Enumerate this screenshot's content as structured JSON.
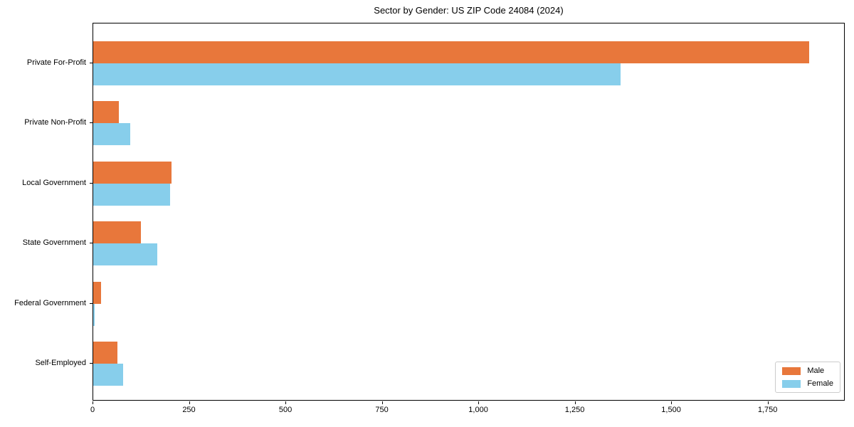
{
  "chart_data": {
    "type": "bar",
    "orientation": "horizontal",
    "title": "Sector by Gender: US ZIP Code 24084 (2024)",
    "categories": [
      "Private For-Profit",
      "Private Non-Profit",
      "Local Government",
      "State Government",
      "Federal Government",
      "Self-Employed"
    ],
    "series": [
      {
        "name": "Male",
        "color": "#e8773b",
        "values": [
          1855,
          66,
          203,
          124,
          21,
          63
        ]
      },
      {
        "name": "Female",
        "color": "#87ceeb",
        "values": [
          1367,
          96,
          200,
          166,
          4,
          78
        ]
      }
    ],
    "xlabel": "",
    "ylabel": "",
    "xlim": [
      0,
      1950
    ],
    "xticks": [
      0,
      250,
      500,
      750,
      1000,
      1250,
      1500,
      1750
    ],
    "xtick_labels": [
      "0",
      "250",
      "500",
      "750",
      "1,000",
      "1,250",
      "1,500",
      "1,750"
    ],
    "grid": false,
    "legend": {
      "position": "lower right"
    },
    "colors": {
      "axis": "#000000",
      "legend_border": "#cccccc",
      "background": "#ffffff"
    }
  }
}
